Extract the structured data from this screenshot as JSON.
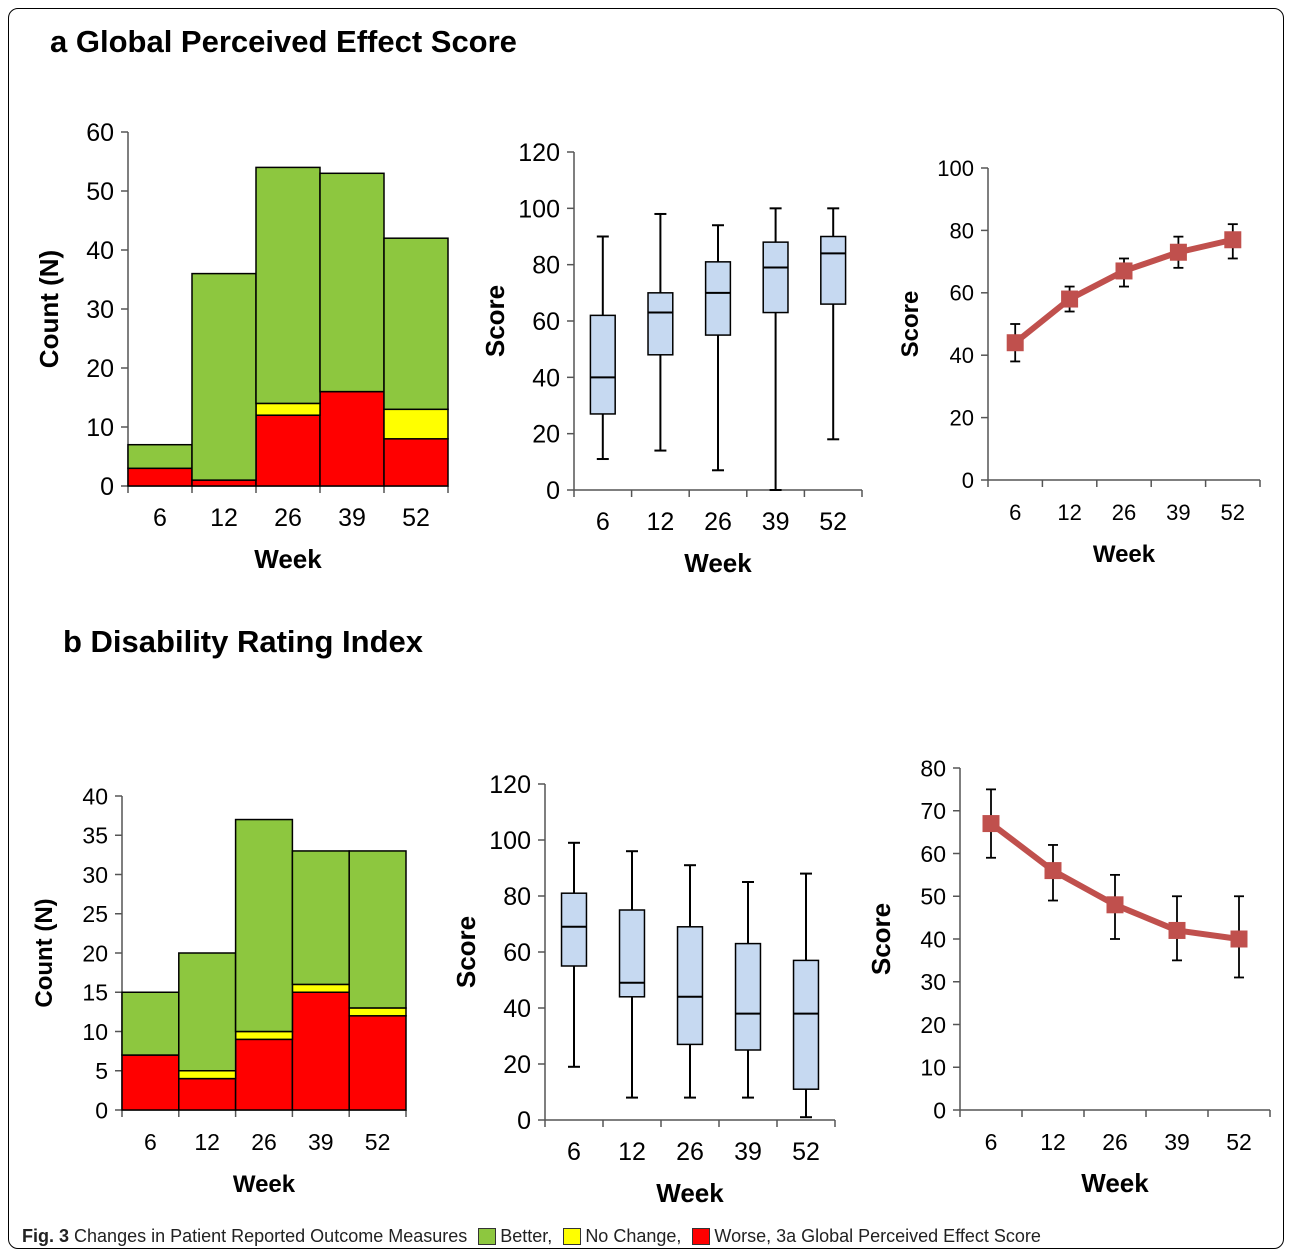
{
  "colors": {
    "better": "#8DC73F",
    "no_change": "#FFFF00",
    "worse": "#FF0000",
    "box_fill": "#C6D9F1",
    "line": "#C0504D"
  },
  "panels": {
    "a": {
      "title": "a Global Perceived Effect Score"
    },
    "b": {
      "title": "b Disability Rating Index"
    }
  },
  "caption": {
    "label": "Fig. 3",
    "text": "Changes in Patient Reported Outcome Measures",
    "legend": [
      {
        "key": "better",
        "label": "Better,"
      },
      {
        "key": "no_change",
        "label": "No Change,"
      },
      {
        "key": "worse",
        "label": "Worse, 3a Global Perceived Effect Score"
      }
    ]
  },
  "chart_data": [
    {
      "id": "a-stacked",
      "type": "bar",
      "stacked": true,
      "categories": [
        "6",
        "12",
        "26",
        "39",
        "52"
      ],
      "series": [
        {
          "name": "Worse",
          "color": "#FF0000",
          "values": [
            3,
            1,
            12,
            16,
            8
          ]
        },
        {
          "name": "No Change",
          "color": "#FFFF00",
          "values": [
            0,
            0,
            2,
            0,
            5
          ]
        },
        {
          "name": "Better",
          "color": "#8DC73F",
          "values": [
            4,
            35,
            40,
            37,
            29
          ]
        }
      ],
      "xlabel": "Week",
      "ylabel": "Count (N)",
      "ylim": [
        0,
        60
      ],
      "yticks": [
        0,
        10,
        20,
        30,
        40,
        50,
        60
      ]
    },
    {
      "id": "a-box",
      "type": "box",
      "categories": [
        "6",
        "12",
        "26",
        "39",
        "52"
      ],
      "boxes": [
        {
          "min": 11,
          "q1": 27,
          "median": 40,
          "q3": 62,
          "max": 90
        },
        {
          "min": 14,
          "q1": 48,
          "median": 63,
          "q3": 70,
          "max": 98
        },
        {
          "min": 7,
          "q1": 55,
          "median": 70,
          "q3": 81,
          "max": 94
        },
        {
          "min": 0,
          "q1": 63,
          "median": 79,
          "q3": 88,
          "max": 100
        },
        {
          "min": 18,
          "q1": 66,
          "median": 84,
          "q3": 90,
          "max": 100
        }
      ],
      "xlabel": "Week",
      "ylabel": "Score",
      "ylim": [
        0,
        120
      ],
      "yticks": [
        0,
        20,
        40,
        60,
        80,
        100,
        120
      ]
    },
    {
      "id": "a-line",
      "type": "line",
      "categories": [
        "6",
        "12",
        "26",
        "39",
        "52"
      ],
      "values": [
        44,
        58,
        67,
        73,
        77
      ],
      "err_low": [
        38,
        54,
        62,
        68,
        71
      ],
      "err_high": [
        50,
        62,
        71,
        78,
        82
      ],
      "xlabel": "Week",
      "ylabel": "Score",
      "ylim": [
        0,
        100
      ],
      "yticks": [
        0,
        20,
        40,
        60,
        80,
        100
      ]
    },
    {
      "id": "b-stacked",
      "type": "bar",
      "stacked": true,
      "categories": [
        "6",
        "12",
        "26",
        "39",
        "52"
      ],
      "series": [
        {
          "name": "Worse",
          "color": "#FF0000",
          "values": [
            7,
            4,
            9,
            15,
            12
          ]
        },
        {
          "name": "No Change",
          "color": "#FFFF00",
          "values": [
            0,
            1,
            1,
            1,
            1
          ]
        },
        {
          "name": "Better",
          "color": "#8DC73F",
          "values": [
            8,
            15,
            27,
            17,
            20
          ]
        }
      ],
      "xlabel": "Week",
      "ylabel": "Count (N)",
      "ylim": [
        0,
        40
      ],
      "yticks": [
        0,
        5,
        10,
        15,
        20,
        25,
        30,
        35,
        40
      ]
    },
    {
      "id": "b-box",
      "type": "box",
      "categories": [
        "6",
        "12",
        "26",
        "39",
        "52"
      ],
      "boxes": [
        {
          "min": 19,
          "q1": 55,
          "median": 69,
          "q3": 81,
          "max": 99
        },
        {
          "min": 8,
          "q1": 44,
          "median": 49,
          "q3": 75,
          "max": 96
        },
        {
          "min": 8,
          "q1": 27,
          "median": 44,
          "q3": 69,
          "max": 91
        },
        {
          "min": 8,
          "q1": 25,
          "median": 38,
          "q3": 63,
          "max": 85
        },
        {
          "min": 1,
          "q1": 11,
          "median": 38,
          "q3": 57,
          "max": 88
        }
      ],
      "xlabel": "Week",
      "ylabel": "Score",
      "ylim": [
        0,
        120
      ],
      "yticks": [
        0,
        20,
        40,
        60,
        80,
        100,
        120
      ]
    },
    {
      "id": "b-line",
      "type": "line",
      "categories": [
        "6",
        "12",
        "26",
        "39",
        "52"
      ],
      "values": [
        67,
        56,
        48,
        42,
        40
      ],
      "err_low": [
        59,
        49,
        40,
        35,
        31
      ],
      "err_high": [
        75,
        62,
        55,
        50,
        50
      ],
      "xlabel": "Week",
      "ylabel": "Score",
      "ylim": [
        0,
        80
      ],
      "yticks": [
        0,
        10,
        20,
        30,
        40,
        50,
        60,
        70,
        80
      ]
    }
  ]
}
